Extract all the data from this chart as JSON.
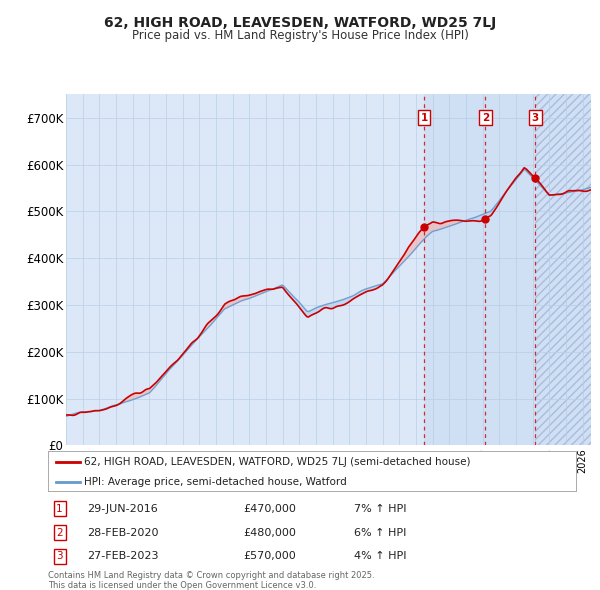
{
  "title_line1": "62, HIGH ROAD, LEAVESDEN, WATFORD, WD25 7LJ",
  "title_line2": "Price paid vs. HM Land Registry's House Price Index (HPI)",
  "background_color": "#ffffff",
  "plot_bg_color": "#dce8f8",
  "grid_color": "#b8cfe8",
  "red_line_color": "#cc0000",
  "blue_line_color": "#6699cc",
  "blue_fill_color": "#b8d0ee",
  "red_fill_color": "#f0b8b8",
  "ylim": [
    0,
    750000
  ],
  "yticks": [
    0,
    100000,
    200000,
    300000,
    400000,
    500000,
    600000,
    700000
  ],
  "ytick_labels": [
    "£0",
    "£100K",
    "£200K",
    "£300K",
    "£400K",
    "£500K",
    "£600K",
    "£700K"
  ],
  "sale_dates": [
    2016.49,
    2020.16,
    2023.16
  ],
  "sale_prices": [
    470000,
    480000,
    570000
  ],
  "sale_labels": [
    "1",
    "2",
    "3"
  ],
  "sale_info": [
    {
      "num": "1",
      "date": "29-JUN-2016",
      "price": "£470,000",
      "pct": "7%",
      "dir": "↑"
    },
    {
      "num": "2",
      "date": "28-FEB-2020",
      "price": "£480,000",
      "pct": "6%",
      "dir": "↑"
    },
    {
      "num": "3",
      "date": "27-FEB-2023",
      "price": "£570,000",
      "pct": "4%",
      "dir": "↑"
    }
  ],
  "legend_label_red": "62, HIGH ROAD, LEAVESDEN, WATFORD, WD25 7LJ (semi-detached house)",
  "legend_label_blue": "HPI: Average price, semi-detached house, Watford",
  "footnote": "Contains HM Land Registry data © Crown copyright and database right 2025.\nThis data is licensed under the Open Government Licence v3.0.",
  "xmin": 1995.0,
  "xmax": 2026.5
}
